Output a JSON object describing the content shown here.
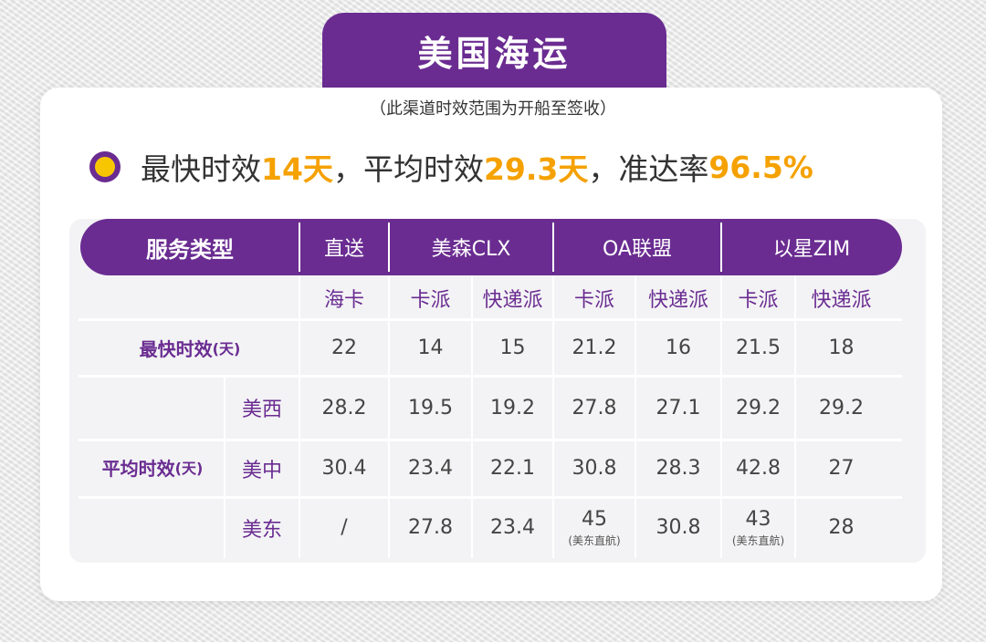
{
  "title": "美国海运",
  "subtitle": "（此渠道时效范围为开船至签收）",
  "summary": {
    "p1": "最快时效",
    "v1": "14天",
    "p2": "，平均时效",
    "v2": "29.3天",
    "p3": "，准达率",
    "v3": "96.5%"
  },
  "table": {
    "header": [
      "服务类型",
      "直送",
      "美森CLX",
      "OA联盟",
      "以星ZIM"
    ],
    "subheaders": [
      "海卡",
      "卡派",
      "快递派",
      "卡派",
      "快递派",
      "卡派",
      "快递派"
    ],
    "fastest": {
      "label": "最快时效",
      "unit": "(天)",
      "values": [
        "22",
        "14",
        "15",
        "21.2",
        "16",
        "21.5",
        "18"
      ]
    },
    "average": {
      "label": "平均时效",
      "unit": "(天)",
      "rows": [
        {
          "region": "美西",
          "values": [
            "28.2",
            "19.5",
            "19.2",
            "27.8",
            "27.1",
            "29.2",
            "29.2"
          ]
        },
        {
          "region": "美中",
          "values": [
            "30.4",
            "23.4",
            "22.1",
            "30.8",
            "28.3",
            "42.8",
            "27"
          ]
        },
        {
          "region": "美东",
          "values": [
            "/",
            "27.8",
            "23.4",
            "45",
            "30.8",
            "43",
            "28"
          ],
          "notes": [
            "",
            "",
            "",
            "(美东直航)",
            "",
            "(美东直航)",
            ""
          ]
        }
      ]
    }
  },
  "colors": {
    "purple": "#6a2c91",
    "accent": "#f5a100",
    "bullet": "#f7c600"
  }
}
